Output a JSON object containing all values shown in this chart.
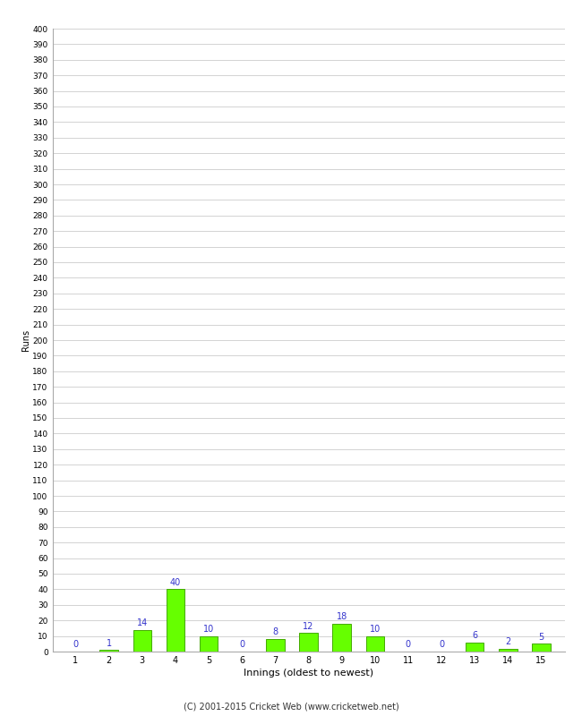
{
  "xlabel": "Innings (oldest to newest)",
  "ylabel": "Runs",
  "categories": [
    1,
    2,
    3,
    4,
    5,
    6,
    7,
    8,
    9,
    10,
    11,
    12,
    13,
    14,
    15
  ],
  "values": [
    0,
    1,
    14,
    40,
    10,
    0,
    8,
    12,
    18,
    10,
    0,
    0,
    6,
    2,
    5
  ],
  "bar_color": "#66ff00",
  "bar_edge_color": "#44aa00",
  "ylim": [
    0,
    400
  ],
  "label_color": "#3333cc",
  "footer": "(C) 2001-2015 Cricket Web (www.cricketweb.net)",
  "background_color": "#ffffff",
  "grid_color": "#cccccc"
}
